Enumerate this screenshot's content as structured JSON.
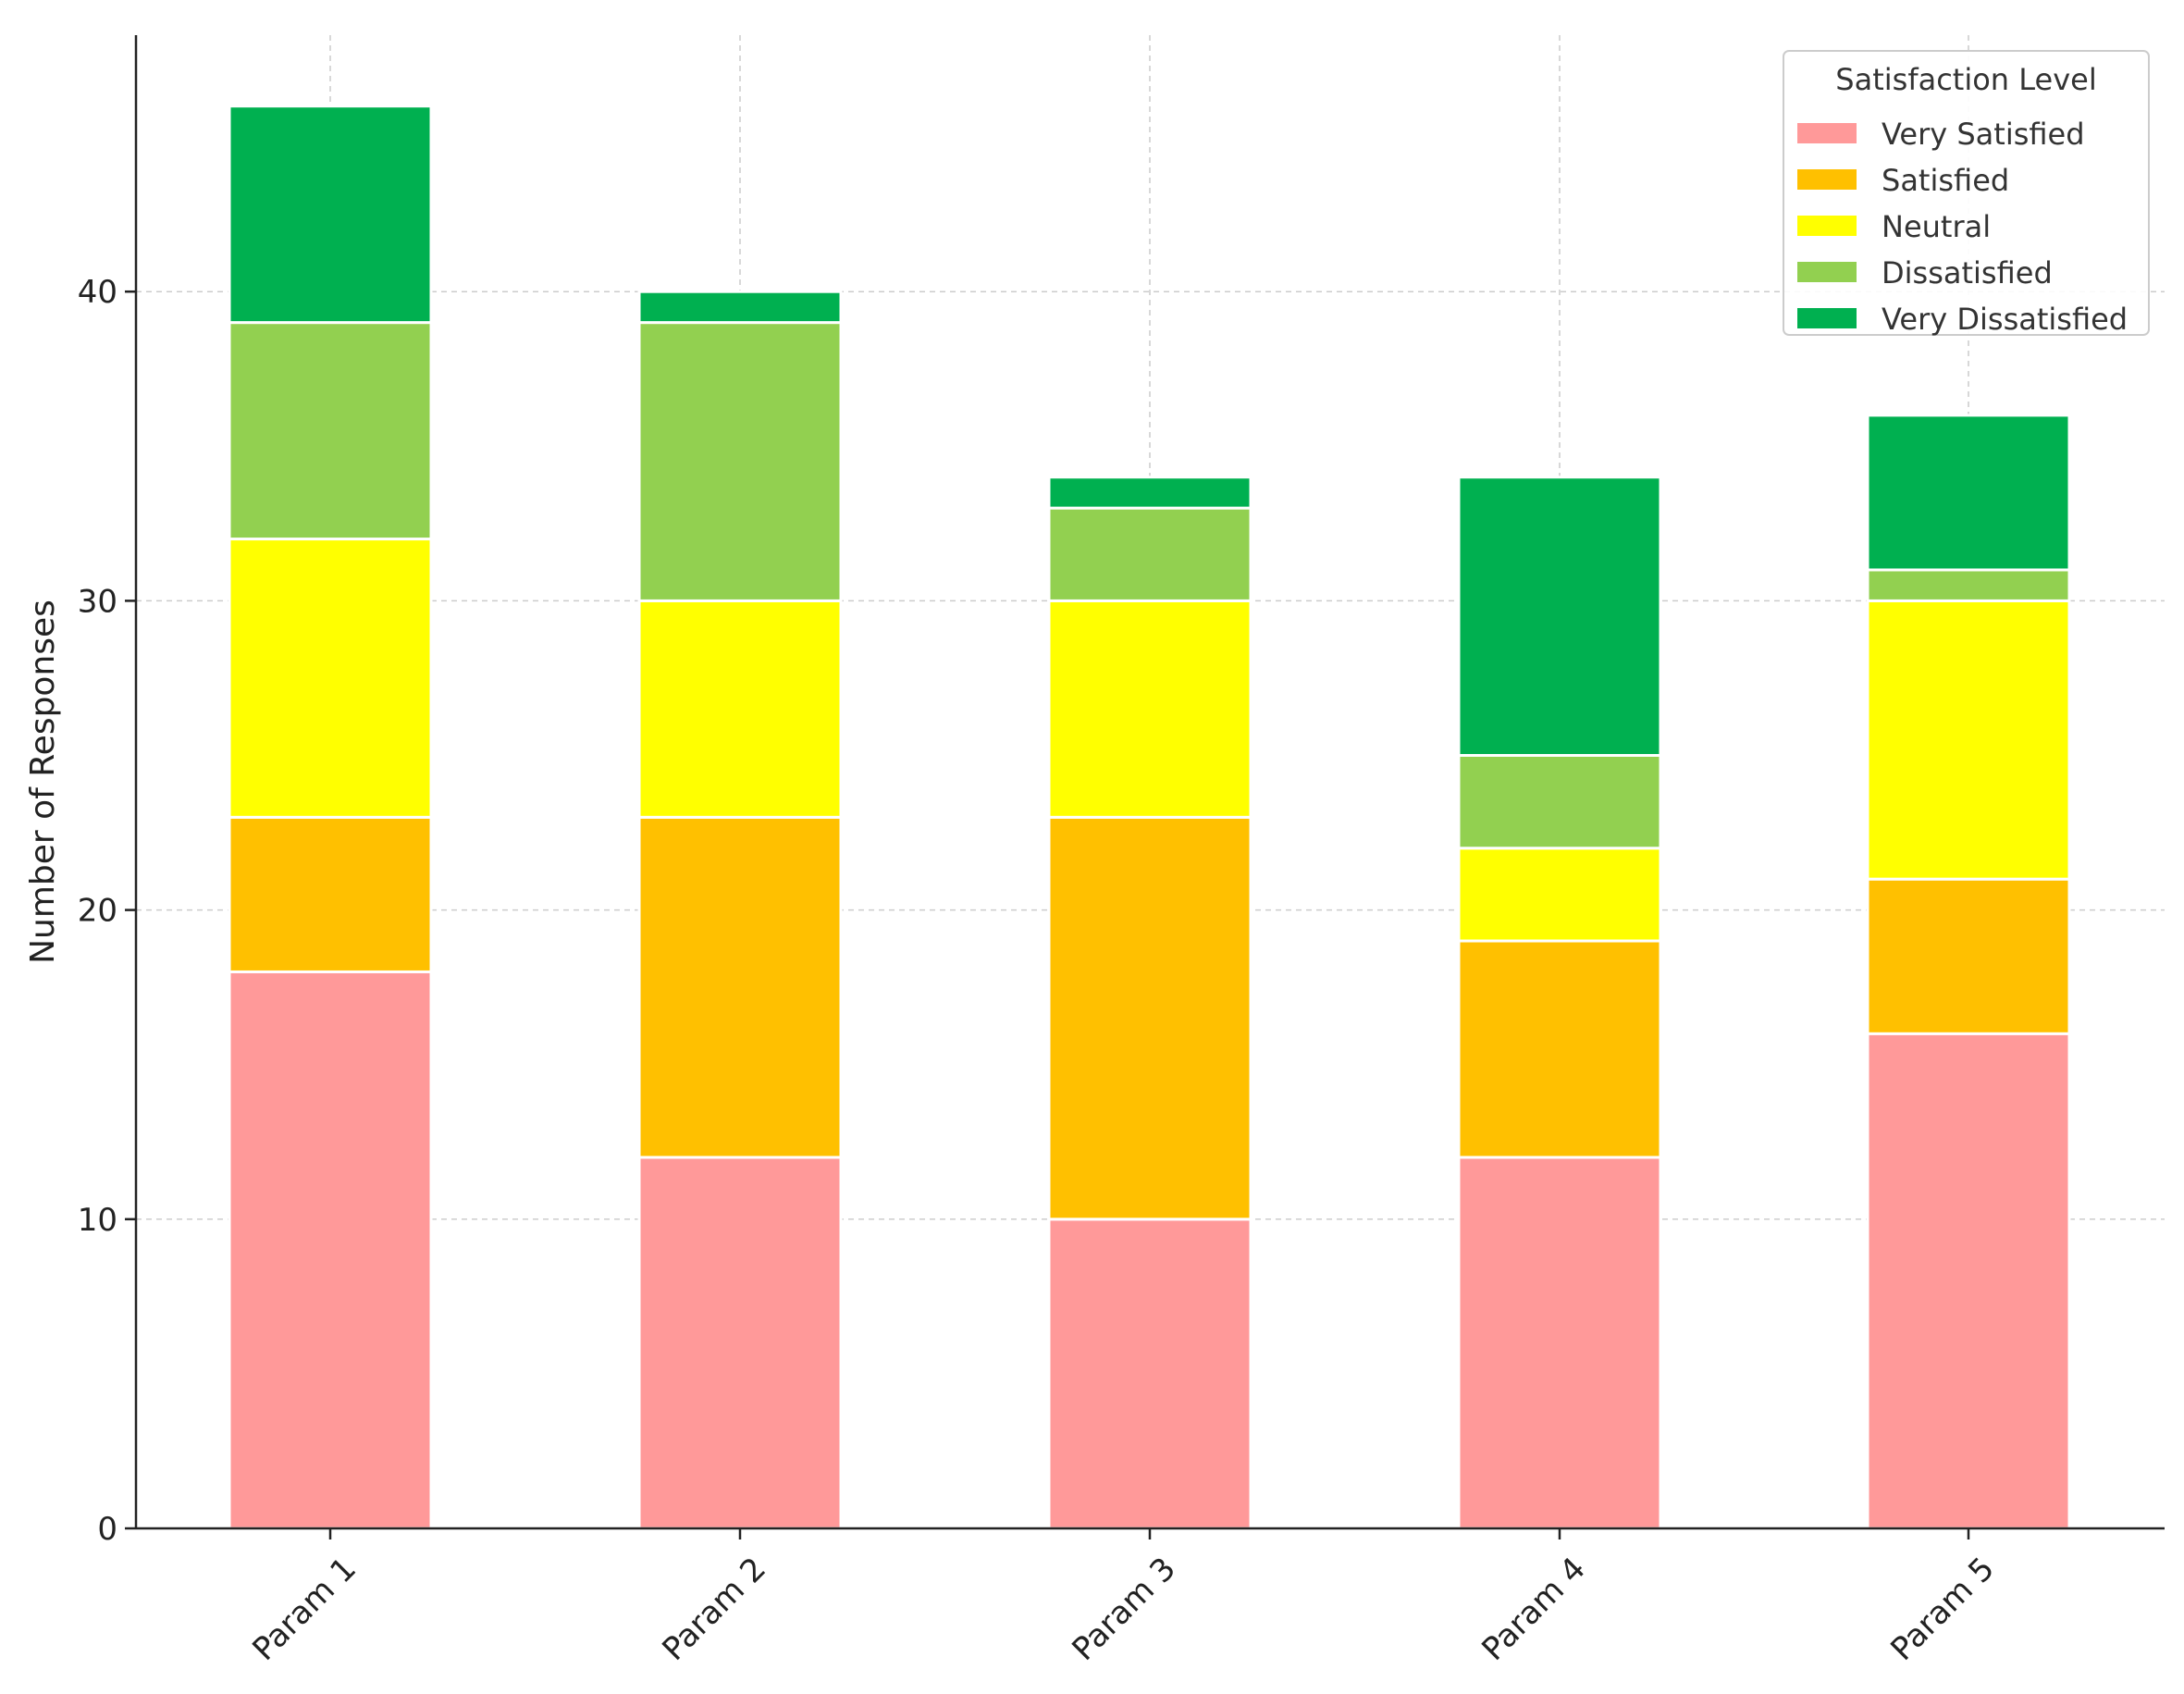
{
  "chart_data": {
    "type": "bar",
    "stacked": true,
    "title": "",
    "xlabel": "",
    "ylabel": "Number of Responses",
    "ylim": [
      0,
      48
    ],
    "yticks": [
      0,
      10,
      20,
      30,
      40
    ],
    "grid": true,
    "categories": [
      "Param 1",
      "Param 2",
      "Param 3",
      "Param 4",
      "Param 5"
    ],
    "legend": {
      "title": "Satisfaction Level",
      "placement": "top-right"
    },
    "series": [
      {
        "name": "Very Satisfied",
        "color": "#ff9999",
        "values": [
          18,
          12,
          10,
          12,
          16
        ]
      },
      {
        "name": "Satisfied",
        "color": "#ffc000",
        "values": [
          5,
          11,
          13,
          7,
          5
        ]
      },
      {
        "name": "Neutral",
        "color": "#ffff00",
        "values": [
          9,
          7,
          7,
          3,
          9
        ]
      },
      {
        "name": "Dissatisfied",
        "color": "#92d050",
        "values": [
          7,
          9,
          3,
          3,
          1
        ]
      },
      {
        "name": "Very Dissatisfied",
        "color": "#00b050",
        "values": [
          7,
          1,
          1,
          9,
          5
        ]
      }
    ]
  }
}
